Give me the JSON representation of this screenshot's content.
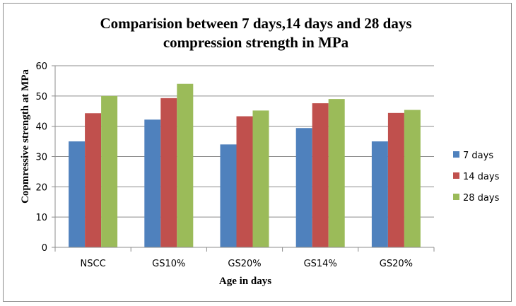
{
  "chart_data": {
    "type": "bar",
    "title_lines": [
      "Comparision between 7 days,14 days and 28 days",
      "compression strength in MPa"
    ],
    "xlabel": "Age in days",
    "ylabel": "Copmressive strength at MPa",
    "categories": [
      "NSCC",
      "GS10%",
      "GS20%",
      "GS14%",
      "GS20%"
    ],
    "series": [
      {
        "name": "7 days",
        "color": "#4f81bd",
        "values": [
          35.0,
          42.2,
          34.0,
          39.4,
          35.0
        ]
      },
      {
        "name": "14 days",
        "color": "#c0504d",
        "values": [
          44.3,
          49.3,
          43.3,
          47.6,
          44.4
        ]
      },
      {
        "name": "28 days",
        "color": "#9bbb59",
        "values": [
          50.0,
          54.0,
          45.2,
          49.0,
          45.4
        ]
      }
    ],
    "ylim": [
      0,
      60
    ],
    "yticks": [
      0,
      10,
      20,
      30,
      40,
      50,
      60
    ],
    "grid": true,
    "legend_position": "right"
  }
}
